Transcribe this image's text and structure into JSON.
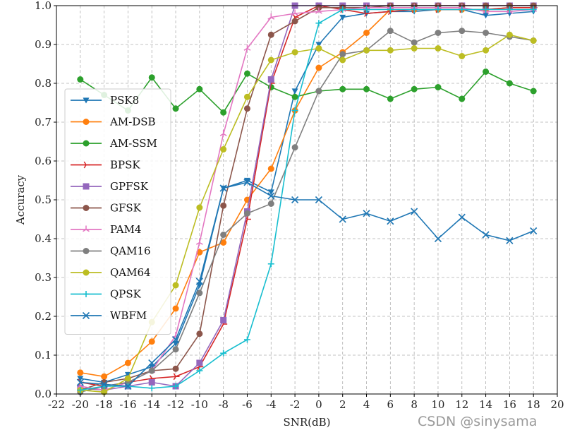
{
  "watermark": "CSDN @sinysama",
  "chart_data": {
    "type": "line",
    "title": "",
    "xlabel": "SNR(dB)",
    "ylabel": "Accuracy",
    "xlim": [
      -22,
      20
    ],
    "ylim": [
      0.0,
      1.0
    ],
    "xticks": [
      -22,
      -20,
      -18,
      -16,
      -14,
      -12,
      -10,
      -8,
      -6,
      -4,
      -2,
      0,
      2,
      4,
      6,
      8,
      10,
      12,
      14,
      16,
      18,
      20
    ],
    "yticks": [
      0.0,
      0.1,
      0.2,
      0.3,
      0.4,
      0.5,
      0.6,
      0.7,
      0.8,
      0.9,
      1.0
    ],
    "grid": true,
    "legend_position": "left",
    "x": [
      -20,
      -18,
      -16,
      -14,
      -12,
      -10,
      -8,
      -6,
      -4,
      -2,
      0,
      2,
      4,
      6,
      8,
      10,
      12,
      14,
      16,
      18
    ],
    "series": [
      {
        "name": "PSK8",
        "color": "#1f77b4",
        "marker": "triangle-down",
        "values": [
          0.04,
          0.03,
          0.05,
          0.07,
          0.13,
          0.28,
          0.53,
          0.55,
          0.52,
          0.78,
          0.9,
          0.97,
          0.98,
          0.985,
          0.985,
          0.99,
          0.99,
          0.975,
          0.98,
          0.985
        ]
      },
      {
        "name": "AM-DSB",
        "color": "#ff7f0e",
        "marker": "circle",
        "values": [
          0.055,
          0.045,
          0.08,
          0.135,
          0.22,
          0.365,
          0.39,
          0.5,
          0.58,
          0.73,
          0.84,
          0.88,
          0.93,
          0.99,
          0.99,
          0.99,
          0.99,
          0.99,
          0.995,
          0.995
        ]
      },
      {
        "name": "AM-SSM",
        "color": "#2ca02c",
        "marker": "circle",
        "values": [
          0.81,
          0.77,
          0.73,
          0.815,
          0.735,
          0.785,
          0.725,
          0.825,
          0.79,
          0.765,
          0.78,
          0.785,
          0.785,
          0.76,
          0.785,
          0.79,
          0.76,
          0.83,
          0.8,
          0.78
        ]
      },
      {
        "name": "BPSK",
        "color": "#d62728",
        "marker": "tri-right",
        "values": [
          0.03,
          0.02,
          0.03,
          0.04,
          0.045,
          0.07,
          0.18,
          0.45,
          0.8,
          0.97,
          1.0,
          0.99,
          0.98,
          0.985,
          0.99,
          0.99,
          0.99,
          0.99,
          0.995,
          0.995
        ]
      },
      {
        "name": "GPFSK",
        "color": "#9467bd",
        "marker": "square",
        "values": [
          0.015,
          0.01,
          0.02,
          0.03,
          0.02,
          0.08,
          0.19,
          0.47,
          0.81,
          1.0,
          1.0,
          1.0,
          1.0,
          1.0,
          1.0,
          1.0,
          1.0,
          1.0,
          1.0,
          1.0
        ]
      },
      {
        "name": "GFSK",
        "color": "#8c564b",
        "marker": "circle",
        "values": [
          0.01,
          0.03,
          0.04,
          0.06,
          0.065,
          0.155,
          0.485,
          0.735,
          0.925,
          0.96,
          0.995,
          0.995,
          0.995,
          1.0,
          1.0,
          1.0,
          1.0,
          1.0,
          1.0,
          1.0
        ]
      },
      {
        "name": "PAM4",
        "color": "#e377c2",
        "marker": "tri-up",
        "values": [
          0.02,
          0.01,
          0.03,
          0.06,
          0.15,
          0.39,
          0.67,
          0.89,
          0.97,
          0.98,
          0.985,
          0.99,
          0.995,
          0.995,
          0.995,
          0.995,
          0.995,
          0.985,
          0.985,
          0.99
        ]
      },
      {
        "name": "QAM16",
        "color": "#7f7f7f",
        "marker": "circle",
        "values": [
          0.005,
          0.02,
          0.03,
          0.06,
          0.115,
          0.26,
          0.41,
          0.465,
          0.49,
          0.635,
          0.78,
          0.875,
          0.885,
          0.935,
          0.905,
          0.93,
          0.935,
          0.93,
          0.92,
          0.91
        ]
      },
      {
        "name": "QAM64",
        "color": "#bcbd22",
        "marker": "circle",
        "values": [
          0.01,
          0.005,
          0.04,
          0.185,
          0.28,
          0.48,
          0.63,
          0.765,
          0.86,
          0.88,
          0.89,
          0.86,
          0.885,
          0.885,
          0.89,
          0.89,
          0.87,
          0.885,
          0.925,
          0.91
        ]
      },
      {
        "name": "QPSK",
        "color": "#17becf",
        "marker": "plus",
        "values": [
          0.01,
          0.02,
          0.02,
          0.015,
          0.02,
          0.06,
          0.105,
          0.14,
          0.335,
          0.73,
          0.955,
          0.99,
          0.99,
          0.99,
          0.99,
          0.99,
          0.99,
          0.99,
          0.99,
          0.99
        ]
      },
      {
        "name": "WBFM",
        "color": "#1f77b4",
        "marker": "x",
        "values": [
          0.03,
          0.025,
          0.02,
          0.08,
          0.14,
          0.29,
          0.53,
          0.545,
          0.51,
          0.5,
          0.5,
          0.45,
          0.465,
          0.445,
          0.47,
          0.4,
          0.455,
          0.41,
          0.395,
          0.42
        ]
      }
    ]
  }
}
